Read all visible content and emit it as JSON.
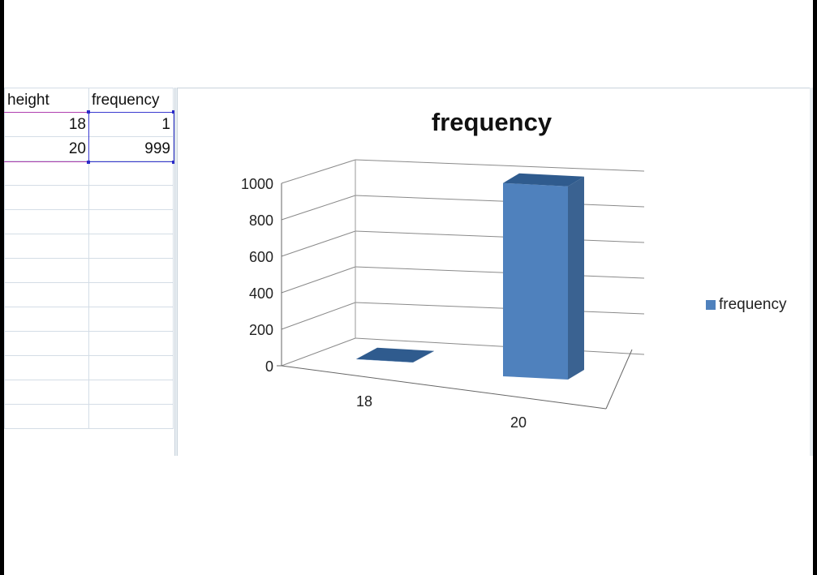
{
  "sheet": {
    "headers": [
      "height",
      "frequency"
    ],
    "rows": [
      [
        "18",
        "1"
      ],
      [
        "20",
        "999"
      ]
    ]
  },
  "chart_data": {
    "type": "bar",
    "title": "frequency",
    "categories": [
      "18",
      "20"
    ],
    "series": [
      {
        "name": "frequency",
        "values": [
          1,
          999
        ]
      }
    ],
    "ylim": [
      0,
      1000
    ],
    "yticks": [
      0,
      200,
      400,
      600,
      800,
      1000
    ],
    "grid": true,
    "legend": "right",
    "colors": {
      "bar": "#4f81bd",
      "bar_side": "#3a6291",
      "bar_top": "#2f5b8e"
    },
    "style": "3d-column"
  }
}
